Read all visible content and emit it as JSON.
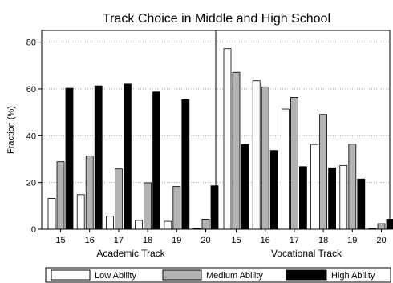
{
  "chart_data": {
    "type": "bar",
    "title": "Track Choice in Middle and High School",
    "ylabel": "Fraction (%)",
    "ylim": [
      0,
      85
    ],
    "yticks": [
      0,
      20,
      40,
      60,
      80
    ],
    "grid": "horizontal dotted",
    "legend_position": "bottom",
    "groups": [
      {
        "label": "Academic Track",
        "categories": [
          "15",
          "16",
          "17",
          "18",
          "19",
          "20"
        ],
        "series": [
          {
            "name": "Low Ability",
            "values": [
              13.2,
              14.8,
              5.6,
              3.8,
              3.4,
              0.3
            ]
          },
          {
            "name": "Medium Ability",
            "values": [
              28.9,
              31.4,
              25.8,
              19.9,
              18.3,
              4.3
            ]
          },
          {
            "name": "High Ability",
            "values": [
              60.3,
              61.3,
              62.1,
              58.7,
              55.4,
              18.6
            ]
          }
        ]
      },
      {
        "label": "Vocational Track",
        "categories": [
          "15",
          "16",
          "17",
          "18",
          "19",
          "20"
        ],
        "series": [
          {
            "name": "Low Ability",
            "values": [
              77.2,
              63.5,
              51.4,
              36.3,
              27.3,
              0.3
            ]
          },
          {
            "name": "Medium Ability",
            "values": [
              67.1,
              60.9,
              56.4,
              49.1,
              36.4,
              2.4
            ]
          },
          {
            "name": "High Ability",
            "values": [
              36.3,
              33.7,
              26.8,
              26.3,
              21.5,
              4.3
            ]
          }
        ]
      }
    ],
    "colors": {
      "Low Ability": "#ffffff",
      "Medium Ability": "#b3b3b3",
      "High Ability": "#000000"
    }
  }
}
